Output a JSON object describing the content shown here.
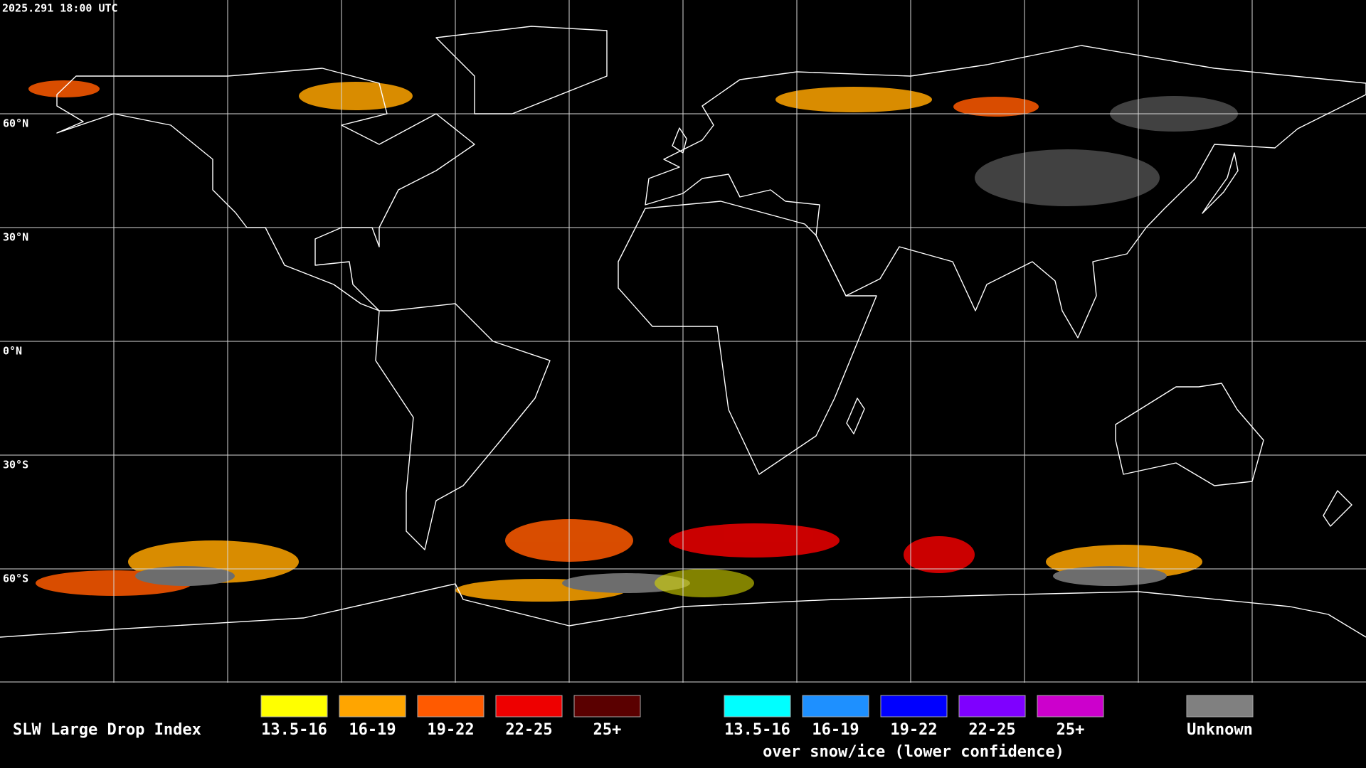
{
  "header": {
    "timestamp": "2025.291 18:00 UTC"
  },
  "map": {
    "lat_labels": [
      "60°N",
      "30°N",
      "0°N",
      "30°S",
      "60°S"
    ]
  },
  "legend": {
    "title": "SLW Large Drop Index",
    "items": [
      {
        "label": "13.5-16",
        "color": "#ffff00"
      },
      {
        "label": "16-19",
        "color": "#ffa500"
      },
      {
        "label": "19-22",
        "color": "#ff5a00"
      },
      {
        "label": "22-25",
        "color": "#ee0000"
      },
      {
        "label": "25+",
        "color": "#5a0000"
      }
    ],
    "snow_items": [
      {
        "label": "13.5-16",
        "color": "#00ffff"
      },
      {
        "label": "16-19",
        "color": "#1e90ff"
      },
      {
        "label": "19-22",
        "color": "#0000ff"
      },
      {
        "label": "22-25",
        "color": "#7f00ff"
      },
      {
        "label": "25+",
        "color": "#cc00cc"
      }
    ],
    "snow_caption": "over snow/ice (lower confidence)",
    "unknown": {
      "label": "Unknown",
      "color": "#808080"
    }
  }
}
